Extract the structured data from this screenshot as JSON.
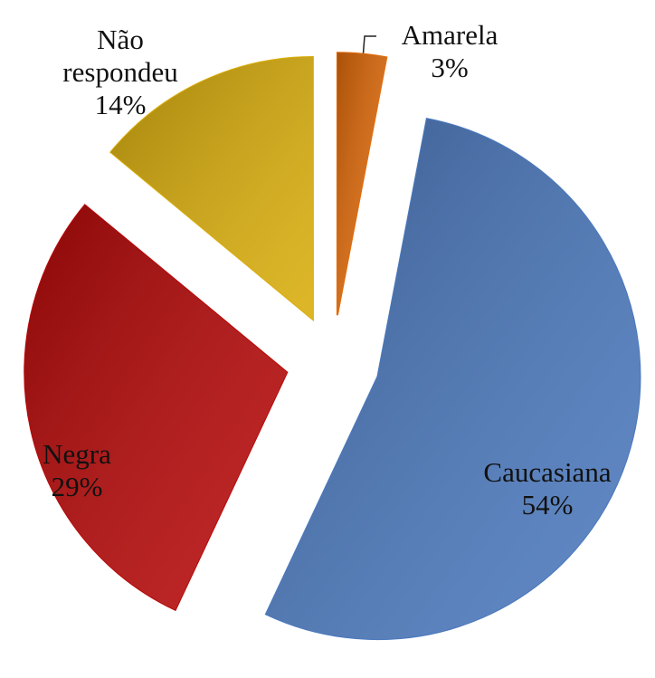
{
  "chart_data": {
    "type": "pie",
    "categories": [
      "Amarela",
      "Caucasiana",
      "Negra",
      "Não respondeu"
    ],
    "values": [
      3,
      54,
      29,
      14
    ],
    "value_labels": [
      "3%",
      "54%",
      "29%",
      "14%"
    ],
    "colors": [
      "#e46c0a",
      "#4a78bd",
      "#b80808",
      "#d9ad0a"
    ]
  }
}
